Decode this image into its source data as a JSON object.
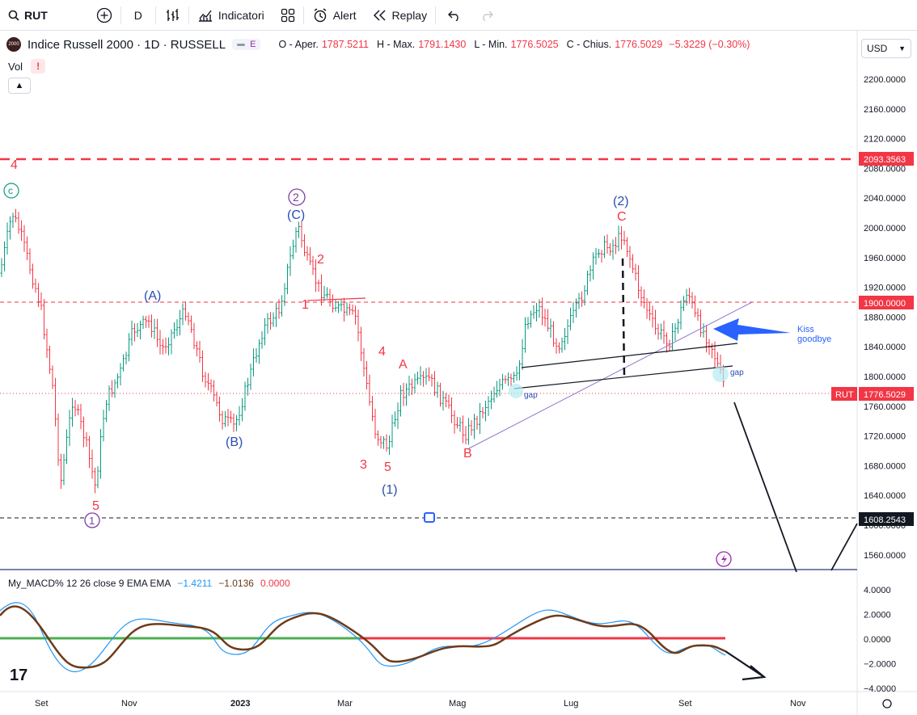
{
  "toolbar": {
    "symbol": "RUT",
    "interval": "D",
    "indicators_label": "Indicatori",
    "alert_label": "Alert",
    "replay_label": "Replay"
  },
  "legend": {
    "logo_text": "2000",
    "title": "Indice Russell 2000 · 1D · RUSSELL",
    "pill_letter": "E",
    "o_label": "O - Aper.",
    "o_value": "1787.5211",
    "h_label": "H - Max.",
    "h_value": "1791.1430",
    "l_label": "L - Min.",
    "l_value": "1776.5025",
    "c_label": "C - Chius.",
    "c_value": "1776.5029",
    "change": "−5.3229 (−0.30%)",
    "vol_label": "Vol",
    "warn": "!"
  },
  "currency": "USD",
  "price_axis": [
    "2200.0000",
    "2160.0000",
    "2120.0000",
    "2080.0000",
    "2040.0000",
    "2000.0000",
    "1960.0000",
    "1920.0000",
    "1880.0000",
    "1840.0000",
    "1800.0000",
    "1760.0000",
    "1720.0000",
    "1680.0000",
    "1640.0000",
    "1600.0000",
    "1560.0000"
  ],
  "price_tags": {
    "top_red": "2093.3563",
    "mid_red": "1900.0000",
    "rut_label": "RUT",
    "rut_price": "1776.5029",
    "support": "1608.2543"
  },
  "time_axis": [
    "Set",
    "Nov",
    "2023",
    "Mar",
    "Mag",
    "Lug",
    "Set",
    "Nov"
  ],
  "waves": {
    "top_left_4": "4",
    "c_circle": "c",
    "A_blue": "(A)",
    "B_blue": "(B)",
    "circle_2": "2",
    "C_blue": "(C)",
    "red_2": "2",
    "red_1": "1",
    "red_4": "4",
    "red_A": "A",
    "red_3": "3",
    "red_5": "5",
    "one_blue": "(1)",
    "red_B": "B",
    "two_blue": "(2)",
    "red_C": "C",
    "red_5_left": "5",
    "circle_1": "1"
  },
  "annotations": {
    "gap1": "gap",
    "gap2": "gap",
    "kiss": "Kiss",
    "goodbye": "goodbye"
  },
  "macd": {
    "name": "My_MACD% 12 26 close 9 EMA EMA",
    "v1": "−1.4211",
    "v2": "−1.0136",
    "v3": "0.0000",
    "axis": [
      "4.0000",
      "2.0000",
      "0.0000",
      "−2.0000",
      "−4.0000"
    ]
  },
  "colors": {
    "up": "#089981",
    "down": "#f23645",
    "accent": "#2962ff"
  }
}
